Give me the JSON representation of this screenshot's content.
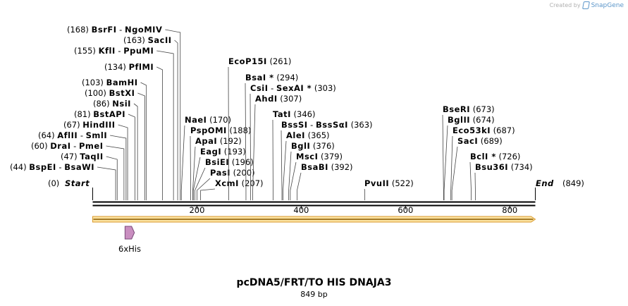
{
  "credit": {
    "text": "Created by",
    "brand": "SnapGene"
  },
  "map": {
    "title": "pcDNA5/FRT/TO HIS DNAJA3",
    "length_label": "849 bp",
    "length": 849,
    "start_label": "Start",
    "start_pos": "(0)",
    "end_label": "End",
    "end_pos": "(849)",
    "ticks": [
      "200",
      "400",
      "600",
      "800"
    ],
    "feature": {
      "name": "6xHis",
      "start": 62,
      "end": 80
    }
  },
  "enzymes": [
    {
      "rows": [
        {
          "name": "BspEI",
          "sep": " - ",
          "name2": "BsaWI",
          "pos": "(44)"
        }
      ],
      "site": 44
    },
    {
      "rows": [
        {
          "name": "TaqII",
          "pos": "(47)"
        }
      ],
      "site": 47
    },
    {
      "rows": [
        {
          "name": "DraI",
          "sep": " - ",
          "name2": "PmeI",
          "pos": "(60)"
        }
      ],
      "site": 60
    },
    {
      "rows": [
        {
          "name": "AflII",
          "sep": " - ",
          "name2": "SmlI",
          "pos": "(64)"
        }
      ],
      "site": 64
    },
    {
      "rows": [
        {
          "name": "HindIII",
          "pos": "(67)"
        }
      ],
      "site": 67
    },
    {
      "rows": [
        {
          "name": "BstAPI",
          "pos": "(81)"
        }
      ],
      "site": 81
    },
    {
      "rows": [
        {
          "name": "NsiI",
          "pos": "(86)"
        }
      ],
      "site": 86
    },
    {
      "rows": [
        {
          "name": "BstXI",
          "pos": "(100)"
        }
      ],
      "site": 100
    },
    {
      "rows": [
        {
          "name": "BamHI",
          "pos": "(103)"
        }
      ],
      "site": 103
    },
    {
      "rows": [
        {
          "name": "PflMI",
          "pos": "(134)"
        }
      ],
      "site": 134
    },
    {
      "rows": [
        {
          "name": "KflI",
          "sep": " - ",
          "name2": "PpuMI",
          "pos": "(155)"
        }
      ],
      "site": 155
    },
    {
      "rows": [
        {
          "name": "SacII",
          "pos": "(163)"
        }
      ],
      "site": 163
    },
    {
      "rows": [
        {
          "name": "BsrFI",
          "sep": " - ",
          "name2": "NgoMIV",
          "pos": "(168)"
        }
      ],
      "site": 168
    },
    {
      "rows": [
        {
          "name": "NaeI",
          "pos": "(170)"
        }
      ],
      "site": 170
    },
    {
      "rows": [
        {
          "name": "PspOMI",
          "pos": "(188)"
        }
      ],
      "site": 188
    },
    {
      "rows": [
        {
          "name": "ApaI",
          "pos": "(192)"
        }
      ],
      "site": 192
    },
    {
      "rows": [
        {
          "name": "EagI",
          "pos": "(193)"
        }
      ],
      "site": 193
    },
    {
      "rows": [
        {
          "name": "BsiEI",
          "pos": "(196)"
        }
      ],
      "site": 196
    },
    {
      "rows": [
        {
          "name": "PasI",
          "pos": "(200)"
        }
      ],
      "site": 200
    },
    {
      "rows": [
        {
          "name": "XcmI",
          "pos": "(207)"
        }
      ],
      "site": 207
    },
    {
      "rows": [
        {
          "name": "EcoP15I",
          "pos": "(261)"
        }
      ],
      "site": 261
    },
    {
      "rows": [
        {
          "name": "BsaI",
          "mark": " *",
          "pos": "(294)"
        }
      ],
      "site": 294
    },
    {
      "rows": [
        {
          "name": "CsiI",
          "sep": " - ",
          "name2": "SexAI",
          "mark": " *",
          "pos": "(303)"
        }
      ],
      "site": 303
    },
    {
      "rows": [
        {
          "name": "AhdI",
          "pos": "(307)"
        }
      ],
      "site": 307
    },
    {
      "rows": [
        {
          "name": "TatI",
          "pos": "(346)"
        }
      ],
      "site": 346
    },
    {
      "rows": [
        {
          "name": "BssSI",
          "sep": " - ",
          "name2": "BssSαI",
          "pos": "(363)"
        }
      ],
      "site": 363
    },
    {
      "rows": [
        {
          "name": "AleI",
          "pos": "(365)"
        }
      ],
      "site": 365
    },
    {
      "rows": [
        {
          "name": "BglI",
          "pos": "(376)"
        }
      ],
      "site": 376
    },
    {
      "rows": [
        {
          "name": "MscI",
          "pos": "(379)"
        }
      ],
      "site": 379
    },
    {
      "rows": [
        {
          "name": "BsaBI",
          "pos": "(392)"
        }
      ],
      "site": 392
    },
    {
      "rows": [
        {
          "name": "PvuII",
          "pos": "(522)"
        }
      ],
      "site": 522
    },
    {
      "rows": [
        {
          "name": "BseRI",
          "pos": "(673)"
        }
      ],
      "site": 673
    },
    {
      "rows": [
        {
          "name": "BglII",
          "pos": "(674)"
        }
      ],
      "site": 674
    },
    {
      "rows": [
        {
          "name": "Eco53kI",
          "pos": "(687)"
        }
      ],
      "site": 687
    },
    {
      "rows": [
        {
          "name": "SacI",
          "pos": "(689)"
        }
      ],
      "site": 689
    },
    {
      "rows": [
        {
          "name": "BclI",
          "mark": " *",
          "pos": "(726)"
        }
      ],
      "site": 726
    },
    {
      "rows": [
        {
          "name": "Bsu36I",
          "pos": "(734)"
        }
      ],
      "site": 734
    }
  ]
}
